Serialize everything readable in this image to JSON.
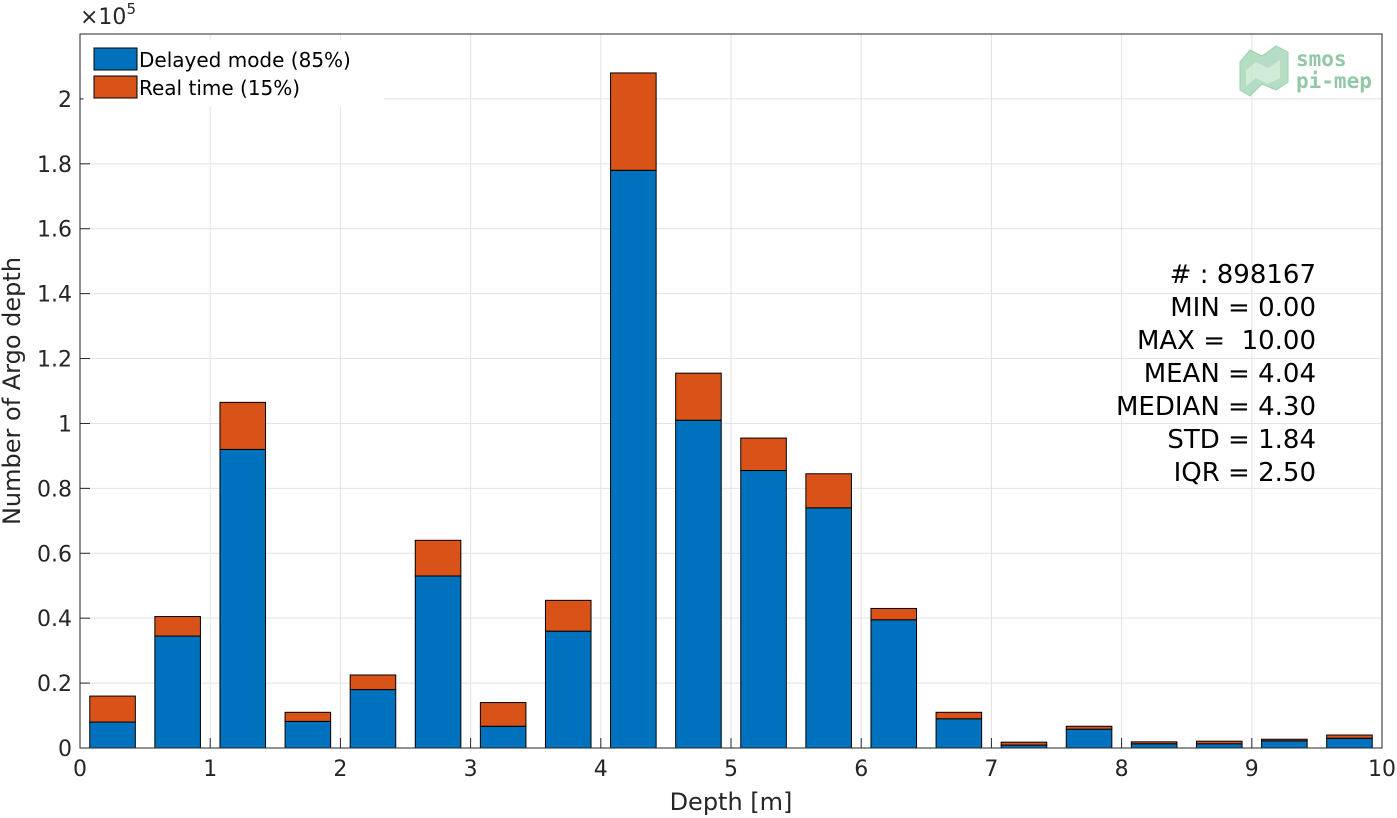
{
  "chart_data": {
    "type": "bar",
    "stacked": true,
    "xlabel": "Depth [m]",
    "ylabel": "Number of Argo depth",
    "y_multiplier": "×10",
    "y_multiplier_exponent": "5",
    "xlim": [
      0,
      10
    ],
    "ylim": [
      0,
      2.2
    ],
    "x_ticks": [
      0,
      1,
      2,
      3,
      4,
      5,
      6,
      7,
      8,
      9,
      10
    ],
    "y_ticks": [
      0,
      0.2,
      0.4,
      0.6,
      0.8,
      1,
      1.2,
      1.4,
      1.6,
      1.8,
      2
    ],
    "y_tick_labels": [
      "0",
      "0.2",
      "0.4",
      "0.6",
      "0.8",
      "1",
      "1.2",
      "1.4",
      "1.6",
      "1.8",
      "2"
    ],
    "grid": true,
    "legend_position": "top-left",
    "bin_centers": [
      0.25,
      0.75,
      1.25,
      1.75,
      2.25,
      2.75,
      3.25,
      3.75,
      4.25,
      4.75,
      5.25,
      5.75,
      6.25,
      6.75,
      7.25,
      7.75,
      8.25,
      8.75,
      9.25,
      9.75
    ],
    "bar_width": 0.35,
    "series": [
      {
        "name": "Delayed mode (85%)",
        "color": "#0072bd",
        "values": [
          0.08,
          0.345,
          0.92,
          0.082,
          0.18,
          0.53,
          0.067,
          0.36,
          1.78,
          1.01,
          0.855,
          0.74,
          0.395,
          0.09,
          0.009,
          0.058,
          0.013,
          0.013,
          0.022,
          0.03
        ]
      },
      {
        "name": "Real time (15%)",
        "color": "#d95319",
        "values": [
          0.08,
          0.06,
          0.145,
          0.028,
          0.045,
          0.11,
          0.073,
          0.095,
          0.3,
          0.145,
          0.1,
          0.105,
          0.035,
          0.02,
          0.009,
          0.009,
          0.006,
          0.008,
          0.005,
          0.01
        ]
      }
    ],
    "stats_lines": [
      "# : 898167",
      "MIN = 0.00",
      "MAX =  10.00",
      "MEAN = 4.04",
      "MEDIAN = 4.30",
      "STD = 1.84",
      "IQR = 2.50"
    ]
  },
  "logo": {
    "line1": "smos",
    "line2": "pi-mep"
  }
}
